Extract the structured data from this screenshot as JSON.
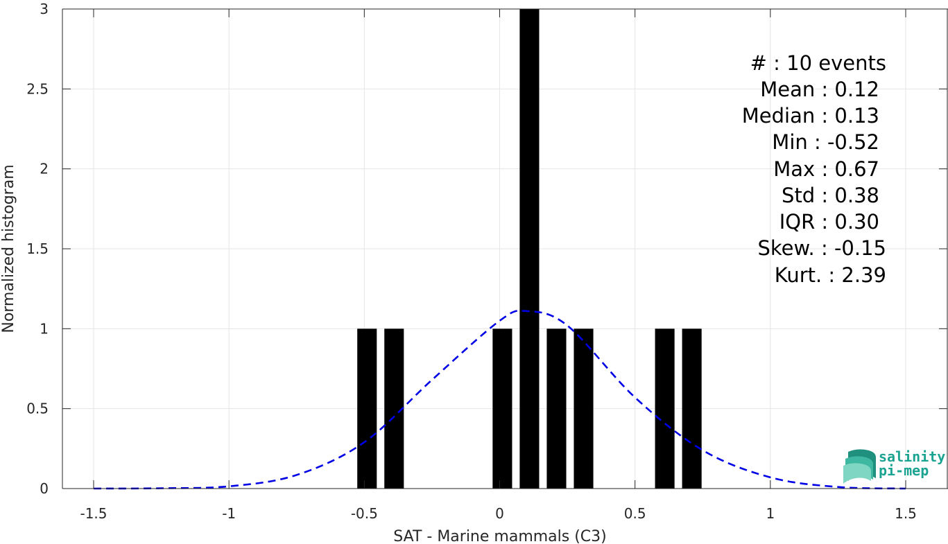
{
  "chart_data": {
    "type": "bar",
    "xlabel": "SAT - Marine mammals (C3)",
    "ylabel": "Normalized histogram",
    "xlim": [
      -1.5,
      1.5
    ],
    "ylim": [
      0,
      3
    ],
    "xticks": [
      -1.5,
      -1,
      -0.5,
      0,
      0.5,
      1,
      1.5
    ],
    "xtick_labels": [
      "-1.5",
      "-1",
      "-0.5",
      "0",
      "0.5",
      "1",
      "1.5"
    ],
    "yticks": [
      0,
      0.5,
      1,
      1.5,
      2,
      2.5,
      3
    ],
    "ytick_labels": [
      "0",
      "0.5",
      "1",
      "1.5",
      "2",
      "2.5",
      "3"
    ],
    "grid": true,
    "bin_width": 0.1,
    "bins": [
      {
        "center": -0.49,
        "value": 1
      },
      {
        "center": -0.39,
        "value": 1
      },
      {
        "center": 0.01,
        "value": 1
      },
      {
        "center": 0.11,
        "value": 3
      },
      {
        "center": 0.21,
        "value": 1
      },
      {
        "center": 0.31,
        "value": 1
      },
      {
        "center": 0.61,
        "value": 1
      },
      {
        "center": 0.71,
        "value": 1
      }
    ],
    "bar_color": "#000000",
    "fit_curve": {
      "style": "dashed",
      "color": "#0000e6",
      "x": [
        -1.5,
        -1.25,
        -1.0,
        -0.75,
        -0.5,
        -0.25,
        0.0,
        0.1,
        0.25,
        0.5,
        0.75,
        1.0,
        1.25,
        1.5
      ],
      "y": [
        0.0,
        0.002,
        0.014,
        0.085,
        0.29,
        0.68,
        1.05,
        1.11,
        1.02,
        0.57,
        0.24,
        0.07,
        0.01,
        0.0
      ]
    }
  },
  "stats": {
    "lines": [
      "#  : 10 events",
      "Mean : 0.12",
      "Median : 0.13",
      "Min : -0.52",
      "Max : 0.67",
      "Std : 0.38",
      "IQR : 0.30",
      "Skew. : -0.15",
      "Kurt. : 2.39"
    ]
  },
  "logo": {
    "line1": "salinity",
    "line2": "pi-mep"
  }
}
